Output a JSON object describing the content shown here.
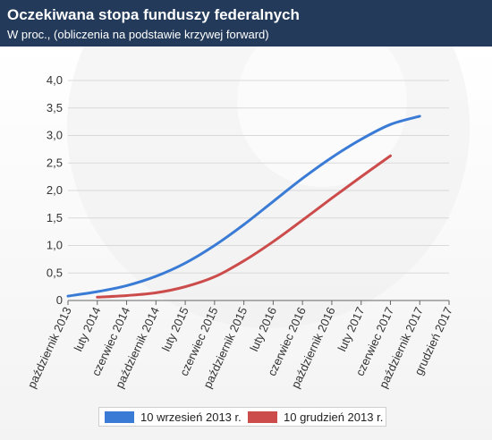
{
  "header": {
    "title": "Oczekiwana stopa funduszy federalnych",
    "subtitle": "W proc., (obliczenia na podstawie krzywej forward)"
  },
  "colors": {
    "header_bg": "#233a5b",
    "series_blue": "#3a7bd5",
    "series_red": "#cc4c4c",
    "watermark": "#e5e5e5"
  },
  "chart_data": {
    "type": "line",
    "title": "Oczekiwana stopa funduszy federalnych",
    "subtitle": "W proc., (obliczenia na podstawie krzywej forward)",
    "categories": [
      "październik 2013",
      "luty 2014",
      "czerwiec 2014",
      "październik 2014",
      "luty 2015",
      "czerwiec 2015",
      "październik 2015",
      "luty 2016",
      "czerwiec 2016",
      "październik 2016",
      "luty 2017",
      "czerwiec 2017",
      "październik 2017",
      "grudzień 2017"
    ],
    "ylim": [
      0,
      4
    ],
    "yticks": [
      "0",
      "0,5",
      "1,0",
      "1,5",
      "2,0",
      "2,5",
      "3,0",
      "3,5",
      "4,0"
    ],
    "grid": true,
    "legend_position": "bottom",
    "series": [
      {
        "name": "10 wrzesień 2013 r.",
        "color": "#3a7bd5",
        "values": [
          0.08,
          0.16,
          0.27,
          0.44,
          0.68,
          1.0,
          1.38,
          1.8,
          2.22,
          2.6,
          2.93,
          3.2,
          3.35,
          null
        ],
        "start_index": 0
      },
      {
        "name": "10 grudzień 2013 r.",
        "color": "#cc4c4c",
        "values": [
          null,
          0.06,
          0.09,
          0.14,
          0.25,
          0.43,
          0.72,
          1.07,
          1.46,
          1.86,
          2.25,
          2.63,
          null,
          null
        ],
        "start_index": 1
      }
    ]
  }
}
